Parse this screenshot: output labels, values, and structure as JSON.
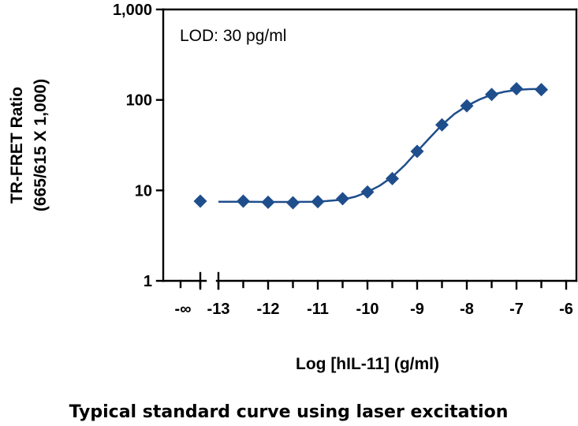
{
  "chart_data": {
    "type": "scatter",
    "title": "",
    "xlabel": "Log [hIL-11] (g/ml)",
    "ylabel": "TR-FRET Ratio",
    "ylabel_sub": "(665/615 X 1,000)",
    "annotation": "LOD: 30 pg/ml",
    "caption": "Typical standard curve using laser excitation",
    "y_scale": "log",
    "ylim": [
      1,
      1000
    ],
    "xlim": [
      -13,
      -6
    ],
    "axis_break": true,
    "grid": false,
    "x_tick_labels": [
      "-∞",
      "-13",
      "-12",
      "-11",
      "-10",
      "-9",
      "-8",
      "-7",
      "-6"
    ],
    "y_tick_labels": [
      "1",
      "10",
      "100",
      "1,000"
    ],
    "series": [
      {
        "marker": "diamond",
        "color": "#1f4e8c",
        "blank": {
          "x": "-∞",
          "y": 7.6
        },
        "x": [
          -12.5,
          -12,
          -11.5,
          -11,
          -10.5,
          -10,
          -9.5,
          -9,
          -8.5,
          -8,
          -7.5,
          -7,
          -6.5
        ],
        "y": [
          7.6,
          7.4,
          7.3,
          7.5,
          8.1,
          9.6,
          13.5,
          27,
          53,
          86,
          115,
          133,
          130
        ]
      }
    ],
    "fit_curve": {
      "color": "#1f4e8c",
      "x": [
        -13,
        -12.5,
        -12,
        -11.5,
        -11,
        -10.5,
        -10.25,
        -10,
        -9.75,
        -9.5,
        -9.25,
        -9,
        -8.75,
        -8.5,
        -8.25,
        -8,
        -7.75,
        -7.5,
        -7.25,
        -7,
        -6.75,
        -6.5
      ],
      "y": [
        7.5,
        7.5,
        7.45,
        7.45,
        7.5,
        7.9,
        8.5,
        9.6,
        11.3,
        14.1,
        19,
        27,
        38,
        53,
        70,
        86,
        101,
        114,
        123,
        129,
        131.5,
        132
      ]
    }
  }
}
